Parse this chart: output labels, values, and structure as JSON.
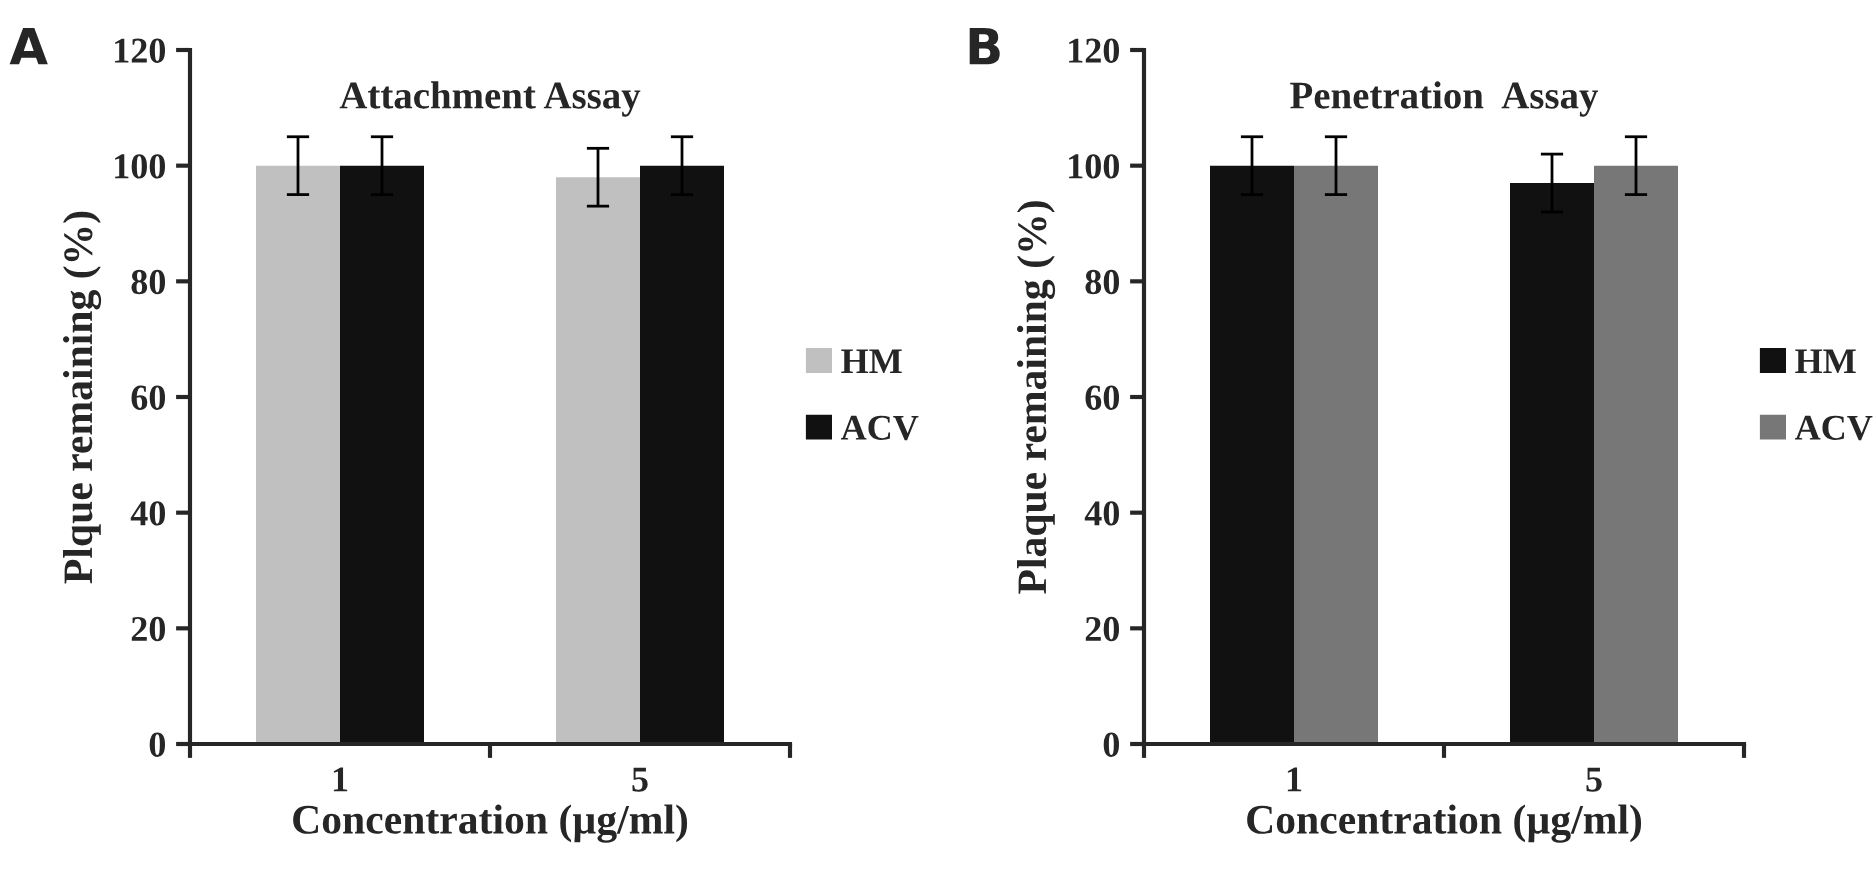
{
  "chart_data": [
    {
      "type": "bar",
      "title": "Attachment Assay",
      "xlabel": "Concentration (µg/ml)",
      "ylabel": "Plque remaining (%)",
      "categories": [
        "1",
        "5"
      ],
      "series": [
        {
          "name": "HM",
          "color": "#c0c0c0",
          "values": [
            100,
            98
          ],
          "errors": [
            5,
            5
          ]
        },
        {
          "name": "ACV",
          "color": "#111111",
          "values": [
            100,
            100
          ],
          "errors": [
            5,
            5
          ]
        }
      ],
      "ylim": [
        0,
        120
      ],
      "yticks": [
        0,
        20,
        40,
        60,
        80,
        100,
        120
      ],
      "grid": false,
      "legend": "right",
      "annotations": [
        "A"
      ]
    },
    {
      "type": "bar",
      "title": "Penetration  Assay",
      "xlabel": "Concentration (µg/ml)",
      "ylabel": "Plaque remaining (%)",
      "categories": [
        "1",
        "5"
      ],
      "series": [
        {
          "name": "HM",
          "color": "#111111",
          "values": [
            100,
            97
          ],
          "errors": [
            5,
            5
          ]
        },
        {
          "name": "ACV",
          "color": "#777777",
          "values": [
            100,
            100
          ],
          "errors": [
            5,
            5
          ]
        }
      ],
      "ylim": [
        0,
        120
      ],
      "yticks": [
        0,
        20,
        40,
        60,
        80,
        100,
        120
      ],
      "grid": false,
      "legend": "right",
      "annotations": [
        "B"
      ]
    }
  ]
}
